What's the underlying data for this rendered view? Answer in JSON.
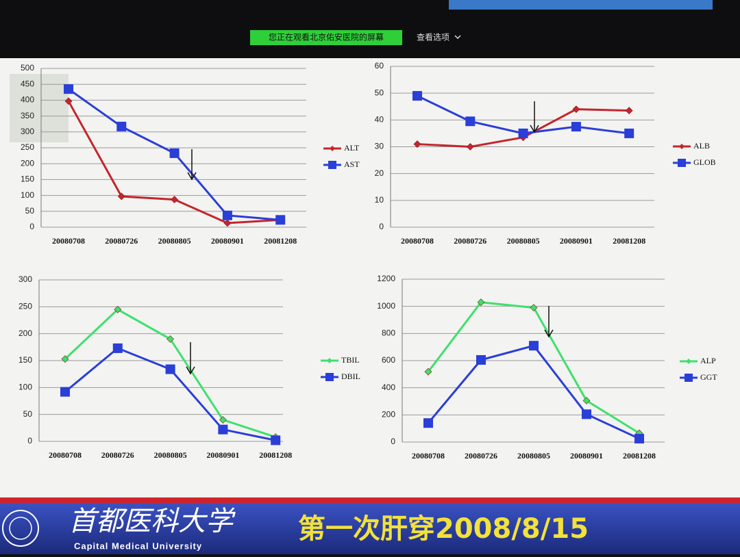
{
  "header": {
    "notice": "您正在观看北京佑安医院的屏幕",
    "options": "查看选项"
  },
  "chart_data": [
    {
      "type": "line",
      "categories": [
        "20080708",
        "20080726",
        "20080805",
        "20080901",
        "20081208"
      ],
      "ylim": [
        0,
        500
      ],
      "yticks": [
        0,
        50,
        100,
        150,
        200,
        250,
        300,
        350,
        400,
        450,
        500
      ],
      "grid": true,
      "legend": "right",
      "series": [
        {
          "name": "ALT",
          "color": "#c4252c",
          "marker": "diamond",
          "values": [
            397,
            97,
            87,
            13,
            23
          ]
        },
        {
          "name": "AST",
          "color": "#2a3ed8",
          "marker": "square",
          "values": [
            435,
            317,
            233,
            37,
            23
          ]
        }
      ]
    },
    {
      "type": "line",
      "categories": [
        "20080708",
        "20080726",
        "20080805",
        "20080901",
        "20081208"
      ],
      "ylim": [
        0,
        60
      ],
      "yticks": [
        0,
        10,
        20,
        30,
        40,
        50,
        60
      ],
      "grid": true,
      "legend": "right",
      "series": [
        {
          "name": "ALB",
          "color": "#c4252c",
          "marker": "diamond",
          "values": [
            31,
            30,
            33.5,
            44,
            43.5
          ]
        },
        {
          "name": "GLOB",
          "color": "#2a3ed8",
          "marker": "square",
          "values": [
            49,
            39.5,
            35,
            37.5,
            35
          ]
        }
      ]
    },
    {
      "type": "line",
      "categories": [
        "20080708",
        "20080726",
        "20080805",
        "20080901",
        "20081208"
      ],
      "ylim": [
        0,
        300
      ],
      "yticks": [
        0,
        50,
        100,
        150,
        200,
        250,
        300
      ],
      "grid": true,
      "legend": "right",
      "series": [
        {
          "name": "TBIL",
          "color": "#3ee06c",
          "marker": "diamond",
          "values": [
            153,
            245,
            190,
            40,
            8
          ]
        },
        {
          "name": "DBIL",
          "color": "#2a3ed8",
          "marker": "square",
          "values": [
            92,
            173,
            134,
            22,
            2
          ]
        }
      ]
    },
    {
      "type": "line",
      "categories": [
        "20080708",
        "20080726",
        "20080805",
        "20080901",
        "20081208"
      ],
      "ylim": [
        0,
        1200
      ],
      "yticks": [
        0,
        200,
        400,
        600,
        800,
        1000,
        1200
      ],
      "grid": true,
      "legend": "right",
      "series": [
        {
          "name": "ALP",
          "color": "#3ee06c",
          "marker": "diamond",
          "values": [
            518,
            1030,
            990,
            305,
            65
          ]
        },
        {
          "name": "GGT",
          "color": "#2a3ed8",
          "marker": "square",
          "values": [
            140,
            605,
            710,
            205,
            25
          ]
        }
      ]
    }
  ],
  "footer": {
    "school": "首都医科大学",
    "school_en": "Capital Medical University",
    "caption": "第一次肝穿2008/8/15"
  }
}
